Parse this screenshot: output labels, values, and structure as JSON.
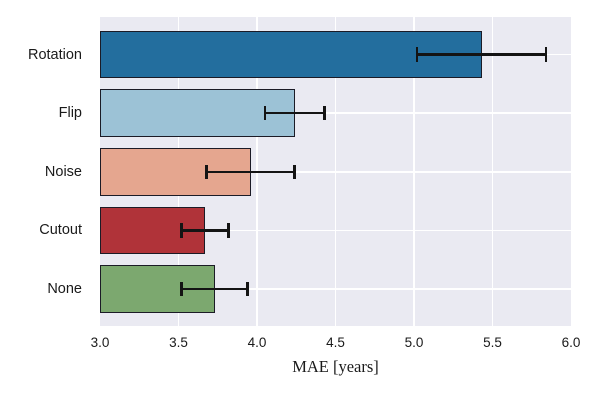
{
  "figure": {
    "background": "#ffffff",
    "plot_background": "#eaeaf2",
    "grid_color": "#ffffff",
    "bar_edge_color": "#1b1b26",
    "error_bar_color": "#141414",
    "text_color": "#1a1a1a"
  },
  "chart_data": {
    "type": "bar",
    "orientation": "horizontal",
    "title": "",
    "xlabel": "MAE [years]",
    "ylabel": "",
    "categories": [
      "Rotation",
      "Flip",
      "Noise",
      "Cutout",
      "None"
    ],
    "values": [
      5.43,
      4.24,
      3.96,
      3.67,
      3.73
    ],
    "errors": [
      0.41,
      0.19,
      0.28,
      0.15,
      0.21
    ],
    "bar_colors": [
      "#236e9e",
      "#9cc2d6",
      "#e5a68f",
      "#b03339",
      "#7ca86f"
    ],
    "xlim": [
      3.0,
      6.0
    ],
    "xticks": [
      3.0,
      3.5,
      4.0,
      4.5,
      5.0,
      5.5,
      6.0
    ],
    "xtick_labels": [
      "3.0",
      "3.5",
      "4.0",
      "4.5",
      "5.0",
      "5.5",
      "6.0"
    ],
    "grid": true,
    "legend": false
  }
}
